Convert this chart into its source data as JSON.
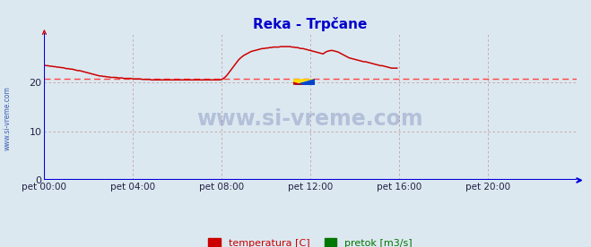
{
  "title": "Reka - Trpčane",
  "title_color": "#0000cc",
  "background_color": "#dce8f0",
  "plot_bg_color": "#dce8f0",
  "xlim": [
    0,
    288
  ],
  "ylim": [
    0,
    30
  ],
  "yticks": [
    0,
    10,
    20
  ],
  "xtick_labels": [
    "pet 00:00",
    "pet 04:00",
    "pet 08:00",
    "pet 12:00",
    "pet 16:00",
    "pet 20:00"
  ],
  "xtick_positions": [
    0,
    48,
    96,
    144,
    192,
    240
  ],
  "grid_color": "#c0a0a0",
  "axis_color": "#0000dd",
  "temp_color": "#cc0000",
  "pretok_color": "#007700",
  "avg_line_color": "#ff4444",
  "avg_line_value": 20.7,
  "watermark_text": "www.si-vreme.com",
  "watermark_color": "#223388",
  "watermark_alpha": 0.22,
  "left_label": "www.si-vreme.com",
  "left_label_color": "#2244aa",
  "legend_temp_label": "temperatura [C]",
  "legend_pretok_label": "pretok [m3/s]",
  "temp_data": [
    23.5,
    23.4,
    23.4,
    23.3,
    23.3,
    23.2,
    23.2,
    23.1,
    23.1,
    23.0,
    23.0,
    22.9,
    22.8,
    22.8,
    22.7,
    22.7,
    22.6,
    22.5,
    22.4,
    22.4,
    22.3,
    22.2,
    22.1,
    22.0,
    21.9,
    21.8,
    21.7,
    21.6,
    21.5,
    21.4,
    21.3,
    21.3,
    21.2,
    21.2,
    21.1,
    21.1,
    21.0,
    21.0,
    21.0,
    21.0,
    20.9,
    20.9,
    20.9,
    20.8,
    20.8,
    20.8,
    20.8,
    20.8,
    20.7,
    20.7,
    20.7,
    20.7,
    20.7,
    20.6,
    20.6,
    20.6,
    20.6,
    20.6,
    20.5,
    20.5,
    20.5,
    20.5,
    20.5,
    20.5,
    20.5,
    20.5,
    20.5,
    20.5,
    20.5,
    20.5,
    20.5,
    20.5,
    20.5,
    20.5,
    20.5,
    20.5,
    20.5,
    20.5,
    20.5,
    20.5,
    20.5,
    20.5,
    20.5,
    20.5,
    20.5,
    20.5,
    20.5,
    20.5,
    20.5,
    20.5,
    20.5,
    20.5,
    20.5,
    20.5,
    20.5,
    20.5,
    20.6,
    20.8,
    21.1,
    21.5,
    22.0,
    22.5,
    23.0,
    23.5,
    24.0,
    24.5,
    24.9,
    25.2,
    25.5,
    25.7,
    25.9,
    26.1,
    26.3,
    26.4,
    26.5,
    26.6,
    26.7,
    26.8,
    26.9,
    26.9,
    27.0,
    27.0,
    27.1,
    27.1,
    27.2,
    27.2,
    27.2,
    27.2,
    27.3,
    27.3,
    27.3,
    27.3,
    27.3,
    27.3,
    27.2,
    27.2,
    27.1,
    27.1,
    27.0,
    26.9,
    26.9,
    26.8,
    26.7,
    26.6,
    26.5,
    26.4,
    26.3,
    26.2,
    26.1,
    26.0,
    25.9,
    25.8,
    26.1,
    26.3,
    26.4,
    26.5,
    26.5,
    26.4,
    26.3,
    26.2,
    26.0,
    25.8,
    25.6,
    25.4,
    25.2,
    25.0,
    24.9,
    24.8,
    24.7,
    24.6,
    24.5,
    24.4,
    24.3,
    24.2,
    24.2,
    24.1,
    24.0,
    23.9,
    23.8,
    23.7,
    23.6,
    23.5,
    23.4,
    23.4,
    23.3,
    23.2,
    23.1,
    23.0,
    22.9,
    22.9,
    22.9,
    22.9
  ],
  "pretok_data_value": 0.05,
  "n_points": 288
}
